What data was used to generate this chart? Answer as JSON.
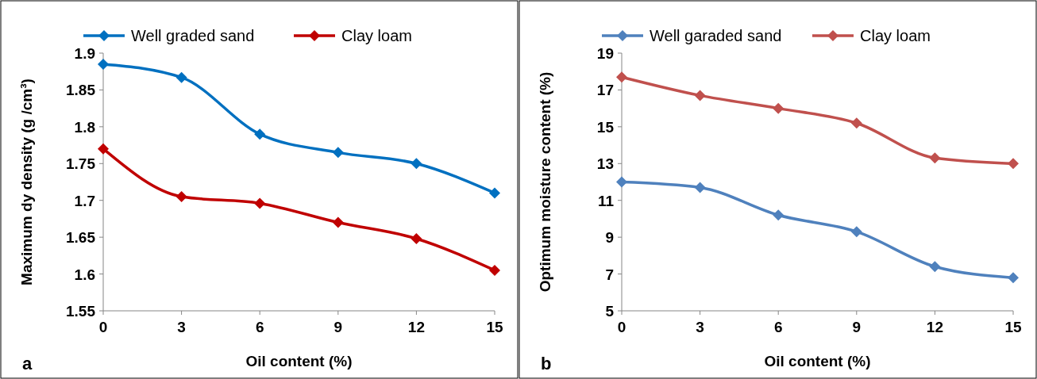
{
  "chart_data": [
    {
      "type": "line",
      "xlabel": "Oil content (%)",
      "ylabel": "Maximum dy density (g /cm³)",
      "x": [
        0,
        3,
        6,
        9,
        12,
        15
      ],
      "xlim": [
        0,
        15
      ],
      "xticks": [
        0,
        3,
        6,
        9,
        12,
        15
      ],
      "ylim": [
        1.55,
        1.9
      ],
      "yticks": [
        1.55,
        1.6,
        1.65,
        1.7,
        1.75,
        1.8,
        1.85,
        1.9
      ],
      "grid": false,
      "legend": "top",
      "marker": "diamond",
      "line_style": "solid",
      "annotations": [
        "a"
      ],
      "series": [
        {
          "name": "Well graded sand",
          "color": "#0070c0",
          "values": [
            1.885,
            1.867,
            1.79,
            1.765,
            1.75,
            1.71
          ]
        },
        {
          "name": "Clay loam",
          "color": "#c00000",
          "values": [
            1.77,
            1.705,
            1.696,
            1.67,
            1.648,
            1.605
          ]
        }
      ]
    },
    {
      "type": "line",
      "xlabel": "Oil content (%)",
      "ylabel": "Optimum moisture content (%)",
      "x": [
        0,
        3,
        6,
        9,
        12,
        15
      ],
      "xlim": [
        0,
        15
      ],
      "xticks": [
        0,
        3,
        6,
        9,
        12,
        15
      ],
      "ylim": [
        5,
        19
      ],
      "yticks": [
        5,
        7,
        9,
        11,
        13,
        15,
        17,
        19
      ],
      "grid": false,
      "legend": "top",
      "marker": "diamond",
      "line_style": "solid",
      "annotations": [
        "b"
      ],
      "series": [
        {
          "name": "Well garaded sand",
          "color": "#4f81bd",
          "values": [
            12.0,
            11.7,
            10.2,
            9.3,
            7.4,
            6.8
          ]
        },
        {
          "name": "Clay loam",
          "color": "#c0504d",
          "values": [
            17.7,
            16.7,
            16.0,
            15.2,
            13.3,
            13.0
          ]
        }
      ]
    }
  ]
}
